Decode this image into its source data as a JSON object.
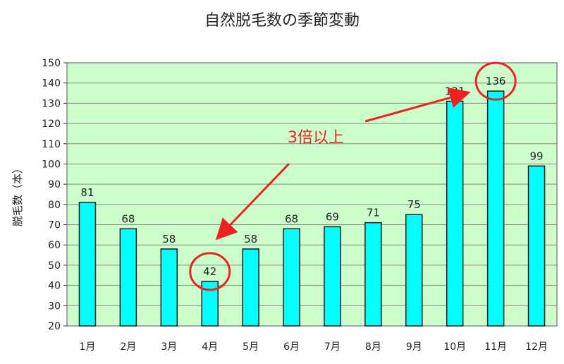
{
  "chart_data": {
    "type": "bar",
    "title": "自然脱毛数の季節変動",
    "xlabel": "",
    "ylabel": "脱毛数（本）",
    "categories": [
      "1月",
      "2月",
      "3月",
      "4月",
      "5月",
      "6月",
      "7月",
      "8月",
      "9月",
      "10月",
      "11月",
      "12月"
    ],
    "values": [
      81,
      68,
      58,
      42,
      58,
      68,
      69,
      71,
      75,
      131,
      136,
      99
    ],
    "ylim": [
      20,
      150
    ],
    "yticks": [
      20,
      30,
      40,
      50,
      60,
      70,
      80,
      90,
      100,
      110,
      120,
      130,
      140,
      150
    ],
    "grid": true,
    "legend": "none",
    "annotation": {
      "text": "3倍以上",
      "circled": [
        "4月",
        "11月"
      ]
    },
    "colors": {
      "bar_fill": "#00ffff",
      "bar_stroke": "#1a1a1a",
      "plot_background": "#ccffcc",
      "gridline": "#888888",
      "annotation": "#ee2222"
    }
  }
}
